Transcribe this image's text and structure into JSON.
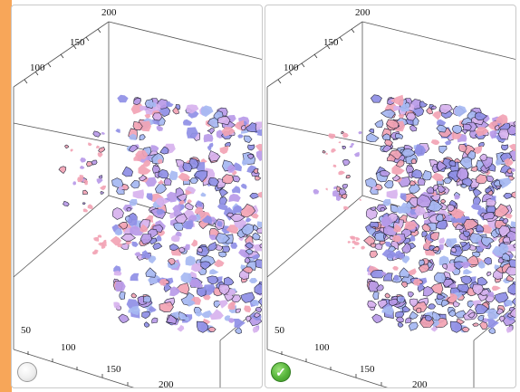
{
  "colors": {
    "accent": "#f7a659",
    "surface_blue": "#8f8fe6",
    "surface_pink": "#f2a3b4",
    "surface_violet": "#b89ae8",
    "radio_checked": "#56b43a"
  },
  "panels": [
    {
      "id": "left",
      "ticks": {
        "top": "200",
        "back_upper": "150",
        "back_lower": "100",
        "front_left": "50",
        "front_mid": "100",
        "front_right": "150",
        "front_far": "200"
      },
      "option": {
        "selected": false,
        "icon": "radio-unchecked-icon"
      },
      "mesh_density": "low"
    },
    {
      "id": "right",
      "ticks": {
        "top": "200",
        "back_upper": "150",
        "back_lower": "100",
        "front_left": "50",
        "front_mid": "100",
        "front_right": "150",
        "front_far": "200"
      },
      "option": {
        "selected": true,
        "icon": "checkmark-icon"
      },
      "mesh_density": "high"
    }
  ]
}
